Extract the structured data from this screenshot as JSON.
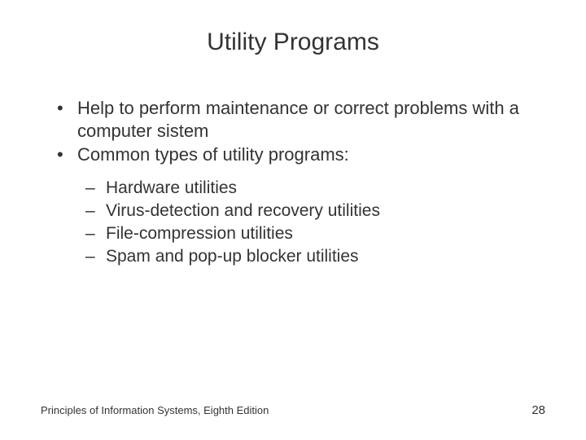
{
  "title": "Utility Programs",
  "bullets": [
    "Help to perform maintenance or correct problems with a computer sistem",
    "Common types of utility programs:"
  ],
  "sub_bullets": [
    "Hardware utilities",
    "Virus-detection and recovery utilities",
    "File-compression utilities",
    "Spam and pop-up blocker utilities"
  ],
  "footer_text": "Principles of Information Systems, Eighth Edition",
  "page_number": "28",
  "colors": {
    "background": "#ffffff",
    "text": "#333333"
  },
  "typography": {
    "title_fontsize": 30,
    "bullet_fontsize": 22,
    "sub_bullet_fontsize": 21,
    "footer_fontsize": 13,
    "pagenum_fontsize": 15,
    "font_family": "Arial"
  }
}
